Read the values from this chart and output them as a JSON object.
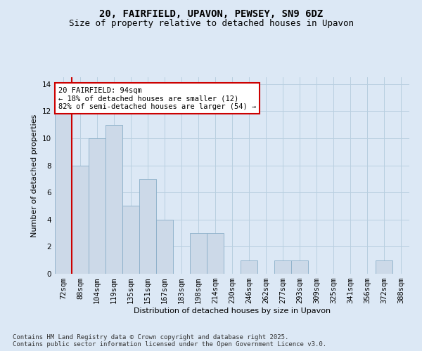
{
  "title1": "20, FAIRFIELD, UPAVON, PEWSEY, SN9 6DZ",
  "title2": "Size of property relative to detached houses in Upavon",
  "xlabel": "Distribution of detached houses by size in Upavon",
  "ylabel": "Number of detached properties",
  "categories": [
    "72sqm",
    "88sqm",
    "104sqm",
    "119sqm",
    "135sqm",
    "151sqm",
    "167sqm",
    "183sqm",
    "198sqm",
    "214sqm",
    "230sqm",
    "246sqm",
    "262sqm",
    "277sqm",
    "293sqm",
    "309sqm",
    "325sqm",
    "341sqm",
    "356sqm",
    "372sqm",
    "388sqm"
  ],
  "values": [
    12,
    8,
    10,
    11,
    5,
    7,
    4,
    0,
    3,
    3,
    0,
    1,
    0,
    1,
    1,
    0,
    0,
    0,
    0,
    1,
    0
  ],
  "bar_color": "#ccd9e8",
  "bar_edge_color": "#8aaec8",
  "vline_x": 0.5,
  "vline_color": "#cc0000",
  "annotation_text": "20 FAIRFIELD: 94sqm\n← 18% of detached houses are smaller (12)\n82% of semi-detached houses are larger (54) →",
  "ylim": [
    0,
    14.5
  ],
  "yticks": [
    0,
    2,
    4,
    6,
    8,
    10,
    12,
    14
  ],
  "bg_color": "#dce8f5",
  "plot_bg_color": "#dce8f5",
  "grid_color": "#b8cfe0",
  "footer": "Contains HM Land Registry data © Crown copyright and database right 2025.\nContains public sector information licensed under the Open Government Licence v3.0.",
  "title_fontsize": 10,
  "subtitle_fontsize": 9,
  "axis_label_fontsize": 8,
  "tick_fontsize": 7.5,
  "annotation_fontsize": 7.5,
  "footer_fontsize": 6.5
}
